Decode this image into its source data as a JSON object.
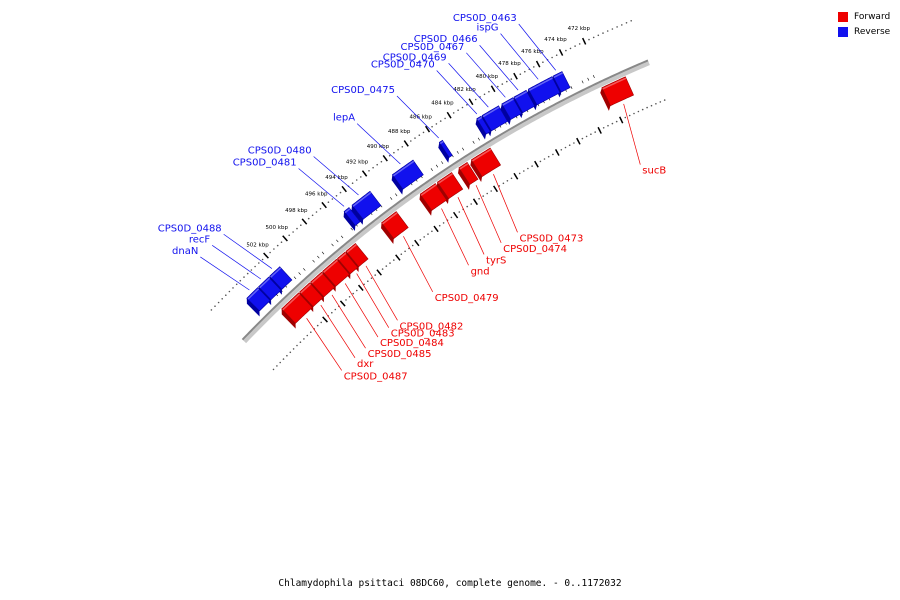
{
  "caption": "Chlamydophila psittaci 08DC60, complete genome. - 0..1172032",
  "legend": [
    {
      "label": "Forward",
      "color": "#ee0000"
    },
    {
      "label": "Reverse",
      "color": "#1111ee"
    }
  ],
  "colors": {
    "forward": "#ee0000",
    "reverse": "#1111ee",
    "backbone": "#888888"
  },
  "ticks": [
    {
      "kbp": 472,
      "label": "472 kbp"
    },
    {
      "kbp": 474,
      "label": "474 kbp"
    },
    {
      "kbp": 476,
      "label": "476 kbp"
    },
    {
      "kbp": 478,
      "label": "478 kbp"
    },
    {
      "kbp": 480,
      "label": "480 kbp"
    },
    {
      "kbp": 482,
      "label": "482 kbp"
    },
    {
      "kbp": 484,
      "label": "484 kbp"
    },
    {
      "kbp": 486,
      "label": "486 kbp"
    },
    {
      "kbp": 488,
      "label": "488 kbp"
    },
    {
      "kbp": 490,
      "label": "490 kbp"
    },
    {
      "kbp": 492,
      "label": "492 kbp"
    },
    {
      "kbp": 494,
      "label": "494 kbp"
    },
    {
      "kbp": 496,
      "label": "496 kbp"
    },
    {
      "kbp": 498,
      "label": "498 kbp"
    },
    {
      "kbp": 500,
      "label": "500 kbp"
    },
    {
      "kbp": 502,
      "label": "502 kbp"
    }
  ],
  "genes": [
    {
      "name": "sucB",
      "strand": "forward",
      "start": 470.2,
      "end": 472.3
    },
    {
      "name": "CPS0D_0473",
      "strand": "forward",
      "start": 482.6,
      "end": 484.4
    },
    {
      "name": "CPS0D_0474",
      "strand": "forward",
      "start": 484.8,
      "end": 485.6
    },
    {
      "name": "tyrS",
      "strand": "forward",
      "start": 486.3,
      "end": 487.7
    },
    {
      "name": "gnd",
      "strand": "forward",
      "start": 487.9,
      "end": 489.4
    },
    {
      "name": "CPS0D_0479",
      "strand": "forward",
      "start": 491.8,
      "end": 493.3
    },
    {
      "name": "CPS0D_0482",
      "strand": "forward",
      "start": 496.0,
      "end": 497.0
    },
    {
      "name": "CPS0D_0483",
      "strand": "forward",
      "start": 497.1,
      "end": 497.9
    },
    {
      "name": "CPS0D_0484",
      "strand": "forward",
      "start": 498.0,
      "end": 499.5
    },
    {
      "name": "CPS0D_0485",
      "strand": "forward",
      "start": 499.6,
      "end": 500.8
    },
    {
      "name": "dxr",
      "strand": "forward",
      "start": 500.9,
      "end": 502.0
    },
    {
      "name": "CPS0D_0487",
      "strand": "forward",
      "start": 502.1,
      "end": 504.0
    },
    {
      "name": "CPS0D_0463",
      "strand": "reverse",
      "start": 474.6,
      "end": 475.4
    },
    {
      "name": "ispG",
      "strand": "reverse",
      "start": 475.5,
      "end": 477.6
    },
    {
      "name": "CPS0D_0466",
      "strand": "reverse",
      "start": 477.8,
      "end": 478.9
    },
    {
      "name": "CPS0D_0467",
      "strand": "reverse",
      "start": 479.0,
      "end": 480.0
    },
    {
      "name": "CPS0D_0469",
      "strand": "reverse",
      "start": 480.3,
      "end": 481.8
    },
    {
      "name": "CPS0D_0470",
      "strand": "reverse",
      "start": 481.9,
      "end": 482.3
    },
    {
      "name": "CPS0D_0475",
      "strand": "reverse",
      "start": 485.5,
      "end": 485.8
    },
    {
      "name": "lepA",
      "strand": "reverse",
      "start": 488.3,
      "end": 490.3
    },
    {
      "name": "CPS0D_0480",
      "strand": "reverse",
      "start": 492.5,
      "end": 494.3
    },
    {
      "name": "CPS0D_0481",
      "strand": "reverse",
      "start": 494.6,
      "end": 495.1
    },
    {
      "name": "CPS0D_0488",
      "strand": "reverse",
      "start": 501.8,
      "end": 502.9
    },
    {
      "name": "recF",
      "strand": "reverse",
      "start": 503.0,
      "end": 504.1
    },
    {
      "name": "dnaN",
      "strand": "reverse",
      "start": 504.2,
      "end": 505.4
    }
  ]
}
